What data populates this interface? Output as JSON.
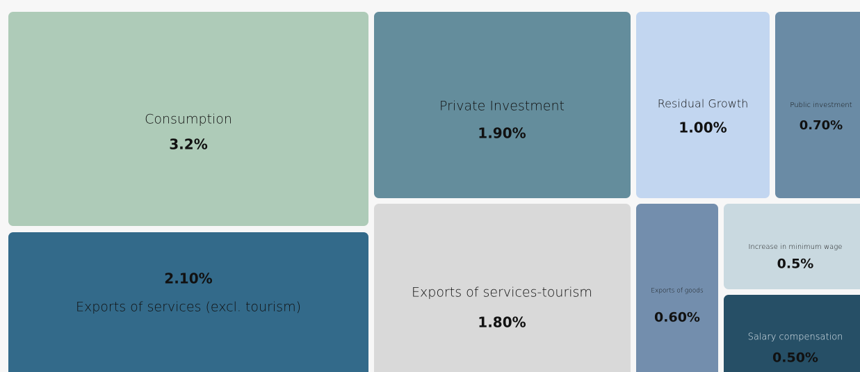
{
  "chart_data": {
    "type": "treemap",
    "categories": [
      "Consumption",
      "Exports of services (excl. tourism)",
      "Private Investment",
      "Exports of services-tourism",
      "Residual Growth",
      "Public investment",
      "Exports of goods",
      "Increase in minimum wage",
      "Salary compensation"
    ],
    "values": [
      3.2,
      2.1,
      1.9,
      1.8,
      1.0,
      0.7,
      0.6,
      0.5,
      0.5
    ],
    "value_labels": [
      "3.2%",
      "2.10%",
      "1.90%",
      "1.80%",
      "1.00%",
      "0.70%",
      "0.60%",
      "0.5%",
      "0.50%"
    ],
    "colors": [
      "#aecbb8",
      "#336a8a",
      "#648d9c",
      "#d9d9d9",
      "#c2d6f0",
      "#6a8ba5",
      "#738ead",
      "#c9d9e0",
      "#264f66"
    ]
  }
}
